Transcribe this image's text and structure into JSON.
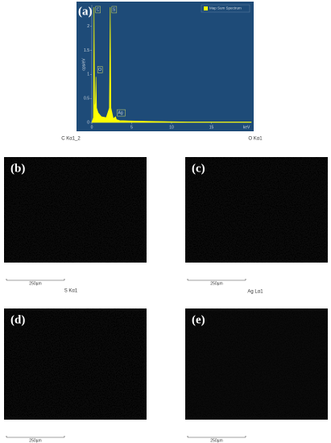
{
  "chart_data": {
    "type": "area",
    "panel": "(a)",
    "legend": "Map Sum Spectrum",
    "legend_position": "upper right",
    "color": "#ffff00",
    "background": "#1e4b78",
    "ylabel": "cps/eV",
    "xlabel": "keV",
    "x": [
      0,
      0.2,
      0.28,
      0.35,
      0.45,
      0.52,
      0.6,
      0.8,
      1.2,
      1.8,
      2.2,
      2.31,
      2.4,
      2.7,
      2.98,
      3.1,
      3.5,
      5,
      8,
      12,
      16,
      20
    ],
    "values": [
      0,
      0.1,
      2.4,
      0.3,
      0.4,
      0.95,
      0.3,
      0.2,
      0.12,
      0.1,
      0.3,
      2.4,
      0.3,
      0.08,
      0.12,
      0.06,
      0.04,
      0.03,
      0.02,
      0.01,
      0.01,
      0.01
    ],
    "xlim": [
      0,
      20
    ],
    "ylim": [
      0,
      2.45
    ],
    "xticks": [
      0,
      5,
      10,
      15
    ],
    "yticks": [
      0,
      0.5,
      1,
      1.5,
      2
    ],
    "annotations": [
      {
        "text": "C",
        "x": 0.28,
        "y": 2.35
      },
      {
        "text": "S",
        "x": 2.31,
        "y": 2.35
      },
      {
        "text": "O",
        "x": 0.52,
        "y": 1.1
      },
      {
        "text": "Ag",
        "x": 2.98,
        "y": 0.2
      }
    ]
  },
  "maps": [
    {
      "panel": "(b)",
      "element": "C Kα1_2",
      "scale": "250µm",
      "color": "#d01818"
    },
    {
      "panel": "(c)",
      "element": "O Kα1",
      "scale": "250µm",
      "color": "#2fb82f"
    },
    {
      "panel": "(d)",
      "element": "S Kα1",
      "scale": "250µm",
      "color": "#3ec8c8"
    },
    {
      "panel": "(e)",
      "element": "Ag Lα1",
      "scale": "250µm",
      "color": "#7a2a8a"
    }
  ]
}
